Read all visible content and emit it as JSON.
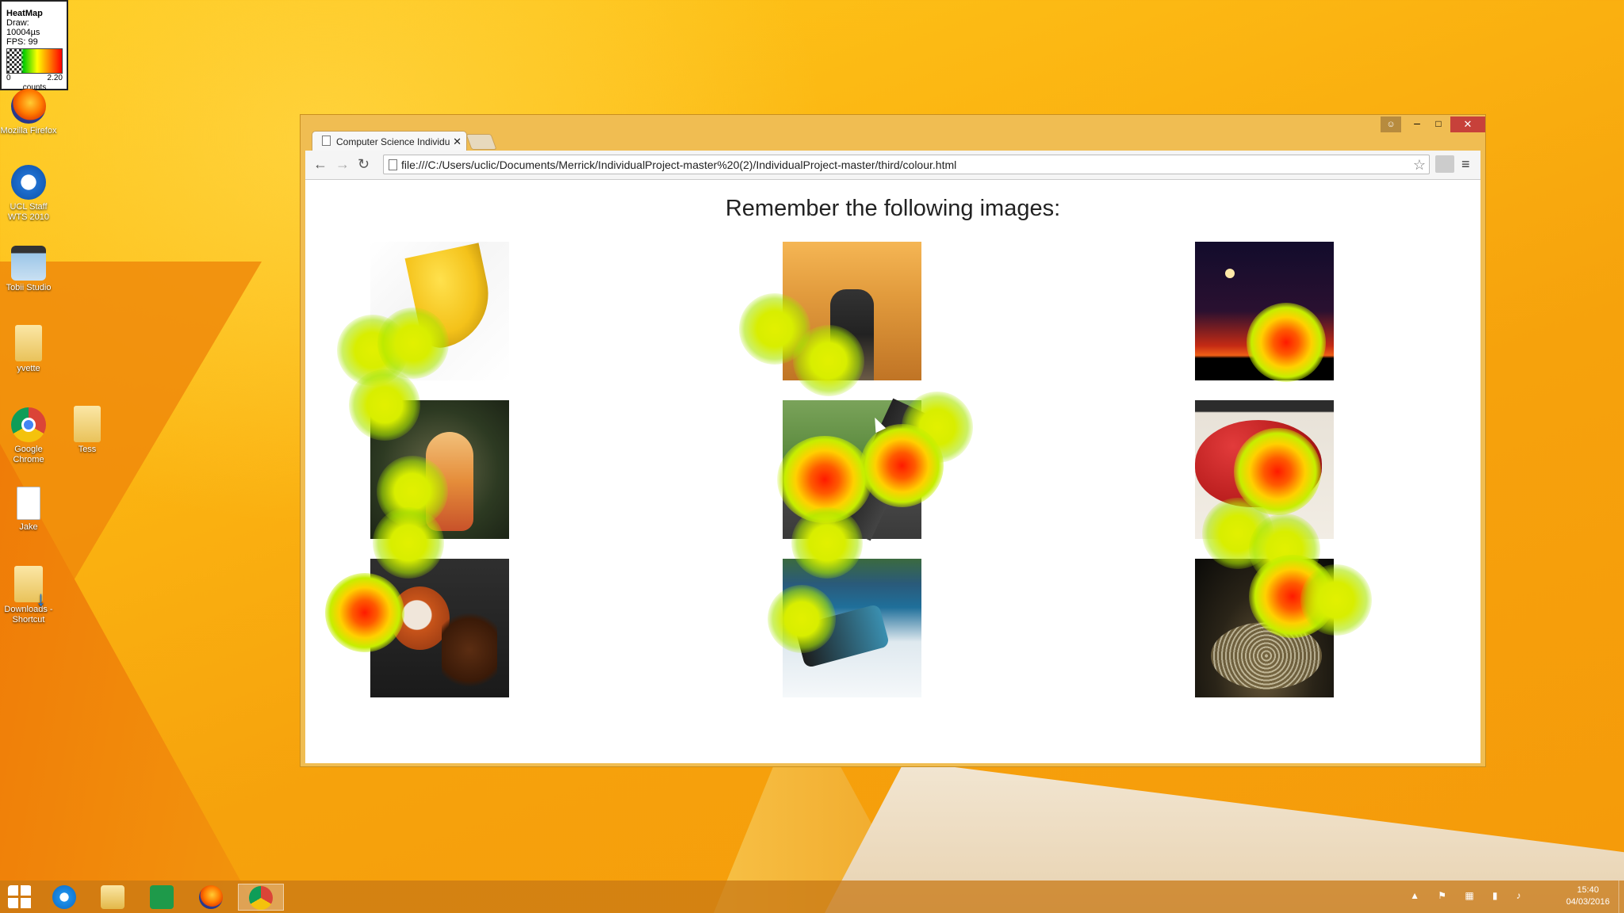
{
  "heatmap_legend": {
    "title": "HeatMap",
    "draw": "Draw: 10004µs",
    "fps": "FPS: 99",
    "scale_min": "0",
    "scale_max": "2.20",
    "unit": "counts"
  },
  "desktop_icons": [
    {
      "label": "Mozilla Firefox",
      "icon": "firefox-icon"
    },
    {
      "label": "UCL Staff WTS 2010",
      "icon": "remote-desktop-icon"
    },
    {
      "label": "Tobii Studio",
      "icon": "tobii-studio-icon"
    },
    {
      "label": "yvette",
      "icon": "folder-icon"
    },
    {
      "label": "Google Chrome",
      "icon": "chrome-icon"
    },
    {
      "label": "Tess",
      "icon": "folder-icon"
    },
    {
      "label": "Jake",
      "icon": "document-icon"
    },
    {
      "label": "Downloads - Shortcut",
      "icon": "downloads-folder-icon"
    }
  ],
  "browser": {
    "tab_title": "Computer Science Individu",
    "url": "file:///C:/Users/uclic/Documents/Merrick/IndividualProject-master%20(2)/IndividualProject-master/third/colour.html",
    "window_controls": {
      "minimize": "–",
      "maximize": "□",
      "close": "✕",
      "user": "☺"
    }
  },
  "page": {
    "heading": "Remember the following images:",
    "images": [
      {
        "subject": "bananas"
      },
      {
        "subject": "desert-feet"
      },
      {
        "subject": "moon-sunset"
      },
      {
        "subject": "giraffe-toy"
      },
      {
        "subject": "leg-grass"
      },
      {
        "subject": "strawberry-tart"
      },
      {
        "subject": "coffee-cup"
      },
      {
        "subject": "jet-ski"
      },
      {
        "subject": "pearls"
      }
    ]
  },
  "taskbar": {
    "apps": [
      "start-icon",
      "internet-explorer-icon",
      "file-explorer-icon",
      "store-icon",
      "firefox-icon",
      "chrome-icon"
    ],
    "clock_time": "15:40",
    "clock_date": "04/03/2016"
  },
  "colors": {
    "desktop": "#f9ae12",
    "window_frame": "#f0bd52",
    "close_button": "#c7413a",
    "heat_low": "#c6ee00",
    "heat_high": "#ff1a00"
  }
}
